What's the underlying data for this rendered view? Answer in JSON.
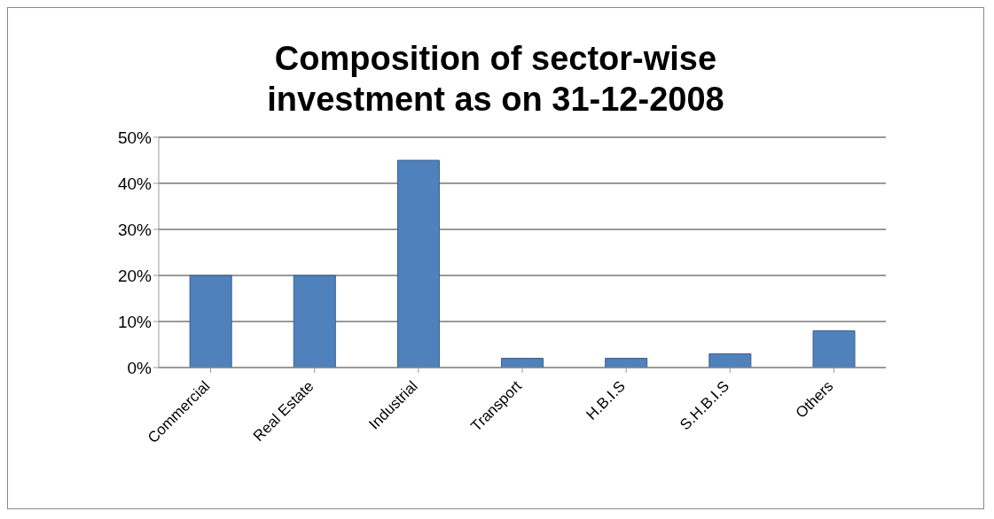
{
  "chart_data": {
    "type": "bar",
    "title": "Composition of sector-wise investment as on 31-12-2008",
    "categories": [
      "Commercial",
      "Real Estate",
      "Industrial",
      "Transport",
      "H.B.I.S",
      "S.H.B.I.S",
      "Others"
    ],
    "values": [
      20,
      20,
      45,
      2,
      2,
      3,
      8
    ],
    "color": "#4f81bd",
    "ylim": [
      0,
      50
    ],
    "yticks": [
      {
        "value": 0,
        "label": "0%"
      },
      {
        "value": 10,
        "label": "10%"
      },
      {
        "value": 20,
        "label": "20%"
      },
      {
        "value": 30,
        "label": "30%"
      },
      {
        "value": 40,
        "label": "40%"
      },
      {
        "value": 50,
        "label": "50%"
      }
    ],
    "grid": "y"
  }
}
